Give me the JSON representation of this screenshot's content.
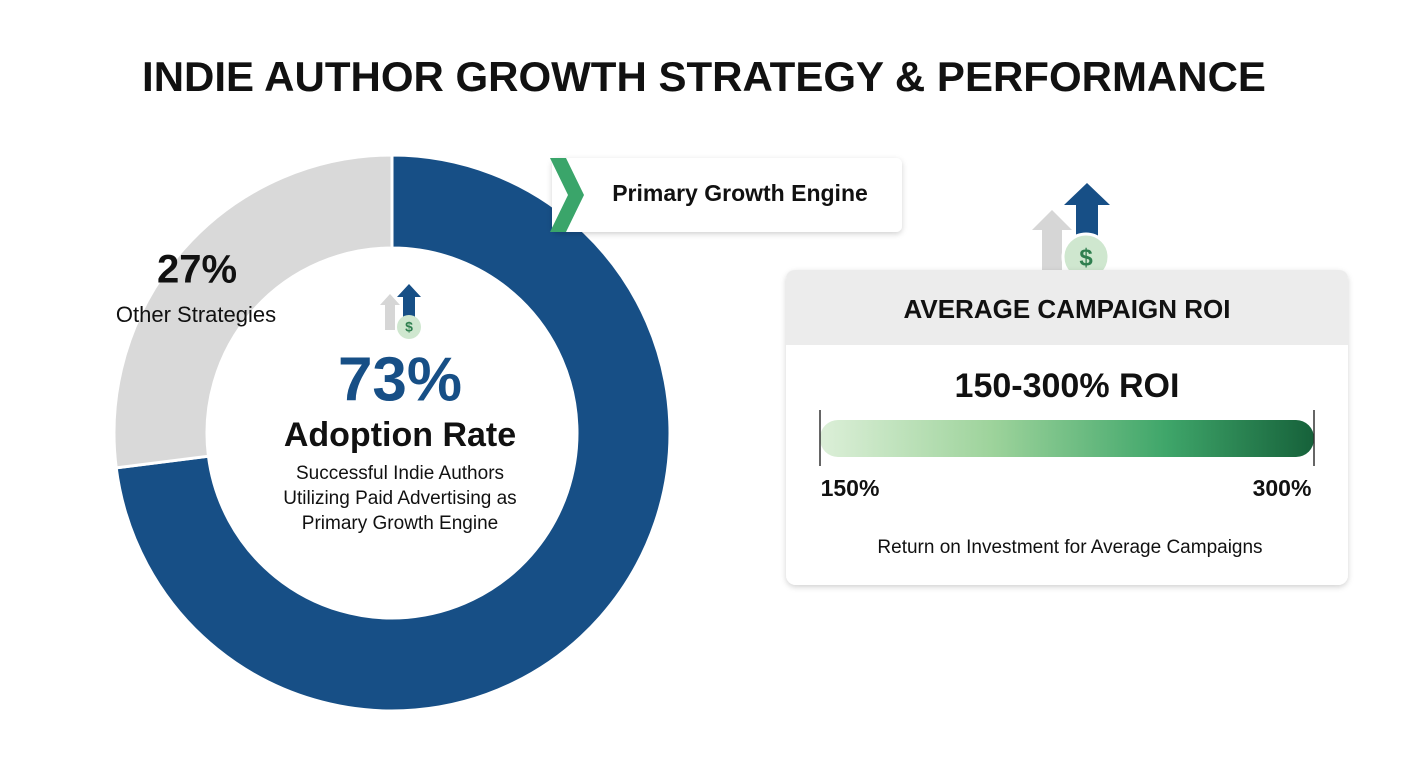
{
  "chart_data": {
    "type": "donut",
    "title": "INDIE AUTHOR GROWTH STRATEGY & PERFORMANCE",
    "categories": [
      "Adoption Rate",
      "Other Strategies"
    ],
    "values": [
      73,
      27
    ],
    "value_labels": [
      "73%",
      "27%"
    ],
    "colors": [
      "#174f86",
      "#d9d9d9"
    ],
    "center_note": [
      "Successful Indie Authors",
      "Utilizing Paid Advertising as",
      "Primary Growth Engine"
    ],
    "callout": "Primary Growth Engine"
  },
  "roi_card": {
    "title": "AVERAGE CAMPAIGN ROI",
    "range_label": "150-300% ROI",
    "ticks": [
      {
        "value": 150,
        "label": "150%"
      },
      {
        "value": 300,
        "label": "300%"
      }
    ],
    "caption": "Return on Investment for Average Campaigns"
  }
}
